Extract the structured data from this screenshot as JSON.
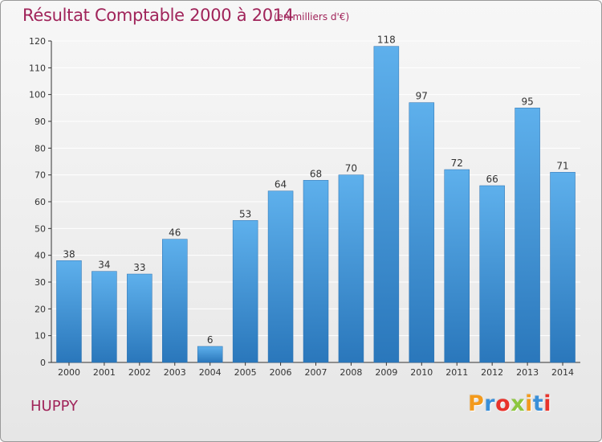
{
  "chart_data": {
    "type": "bar",
    "title": "Résultat Comptable 2000 à 2014",
    "subtitle": "(en milliers d'€)",
    "categories": [
      "2000",
      "2001",
      "2002",
      "2003",
      "2004",
      "2005",
      "2006",
      "2007",
      "2008",
      "2009",
      "2010",
      "2011",
      "2012",
      "2013",
      "2014"
    ],
    "values": [
      38,
      34,
      33,
      46,
      6,
      53,
      64,
      68,
      70,
      118,
      97,
      72,
      66,
      95,
      71
    ],
    "xlabel": "",
    "ylabel": "",
    "ylim": [
      0,
      120
    ],
    "yticks": [
      0,
      10,
      20,
      30,
      40,
      50,
      60,
      70,
      80,
      90,
      100,
      110,
      120
    ],
    "grid": true,
    "bar_color": "#3d93d6",
    "legend": "none"
  },
  "commune": "HUPPY",
  "brand": {
    "letters": [
      "P",
      "r",
      "o",
      "x",
      "i",
      "t",
      "i"
    ],
    "colors": [
      "#f39a1c",
      "#3a8fd8",
      "#e8332b",
      "#8dc63f",
      "#f39a1c",
      "#3a8fd8",
      "#e8332b"
    ]
  },
  "colors": {
    "title": "#a0245a",
    "grid": "#ffffff",
    "axis": "#333333"
  }
}
